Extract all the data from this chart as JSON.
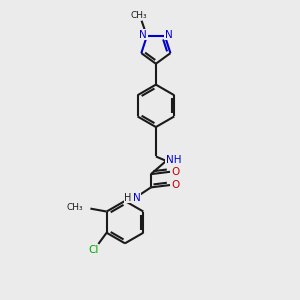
{
  "bg_color": "#ebebeb",
  "bond_color": "#1a1a1a",
  "nitrogen_color": "#0000cc",
  "oxygen_color": "#cc0000",
  "chlorine_color": "#00aa00",
  "line_width": 1.5,
  "figsize": [
    3.0,
    3.0
  ],
  "dpi": 100,
  "xlim": [
    0,
    10
  ],
  "ylim": [
    0,
    10
  ]
}
